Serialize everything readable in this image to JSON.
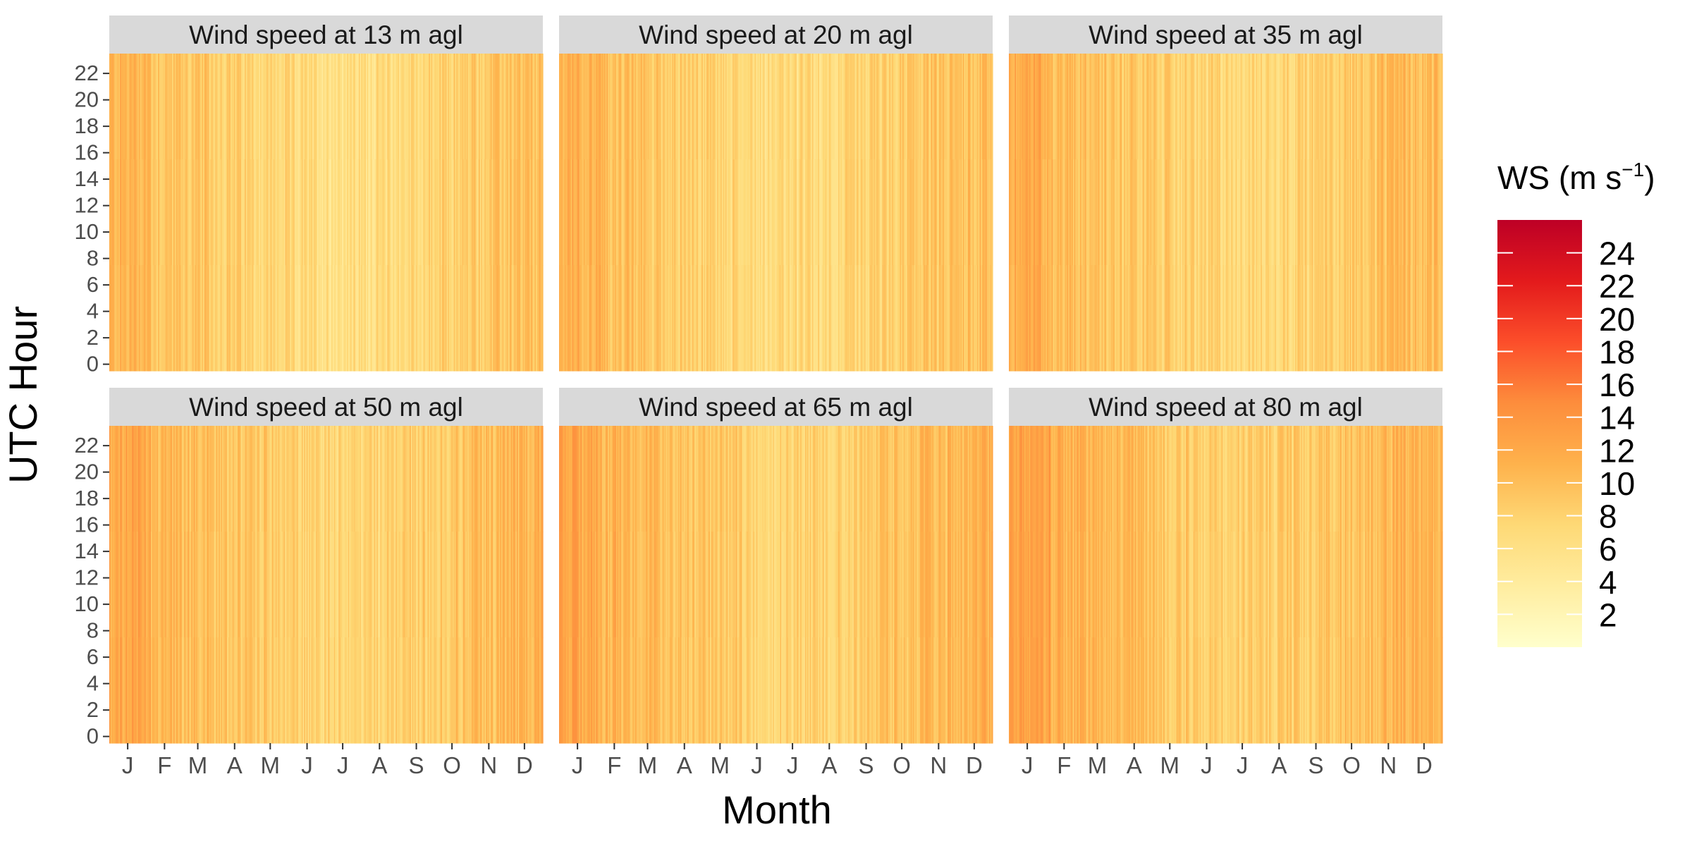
{
  "chart_data": {
    "type": "heatmap",
    "ylabel": "UTC Hour",
    "xlabel": "Month",
    "x_tick_labels": [
      "J",
      "F",
      "M",
      "A",
      "M",
      "J",
      "J",
      "A",
      "S",
      "O",
      "N",
      "D"
    ],
    "y_tick_labels": [
      "0",
      "2",
      "4",
      "6",
      "8",
      "10",
      "12",
      "14",
      "16",
      "18",
      "20",
      "22"
    ],
    "y_range": [
      0,
      23
    ],
    "x_days": [
      1,
      365
    ],
    "legend": {
      "title_main": "WS (m s",
      "title_sup": "−1",
      "title_close": ")",
      "ticks": [
        "2",
        "4",
        "6",
        "8",
        "10",
        "12",
        "14",
        "16",
        "18",
        "20",
        "22",
        "24"
      ],
      "range": [
        0,
        26
      ],
      "position": "right",
      "palette": [
        "#ffffcc",
        "#ffeda0",
        "#fed976",
        "#feb24c",
        "#fd8d3c",
        "#fc4e2a",
        "#e31a1c",
        "#bd0026"
      ]
    },
    "panels": [
      {
        "title": "Wind speed at 13 m agl",
        "height_m": 13,
        "approx_mean_ws": 8.0
      },
      {
        "title": "Wind speed at 20 m agl",
        "height_m": 20,
        "approx_mean_ws": 8.4
      },
      {
        "title": "Wind speed at 35 m agl",
        "height_m": 35,
        "approx_mean_ws": 8.9
      },
      {
        "title": "Wind speed at 50 m agl",
        "height_m": 50,
        "approx_mean_ws": 9.2
      },
      {
        "title": "Wind speed at 65 m agl",
        "height_m": 65,
        "approx_mean_ws": 9.5
      },
      {
        "title": "Wind speed at 80 m agl",
        "height_m": 80,
        "approx_mean_ws": 9.8
      }
    ]
  }
}
